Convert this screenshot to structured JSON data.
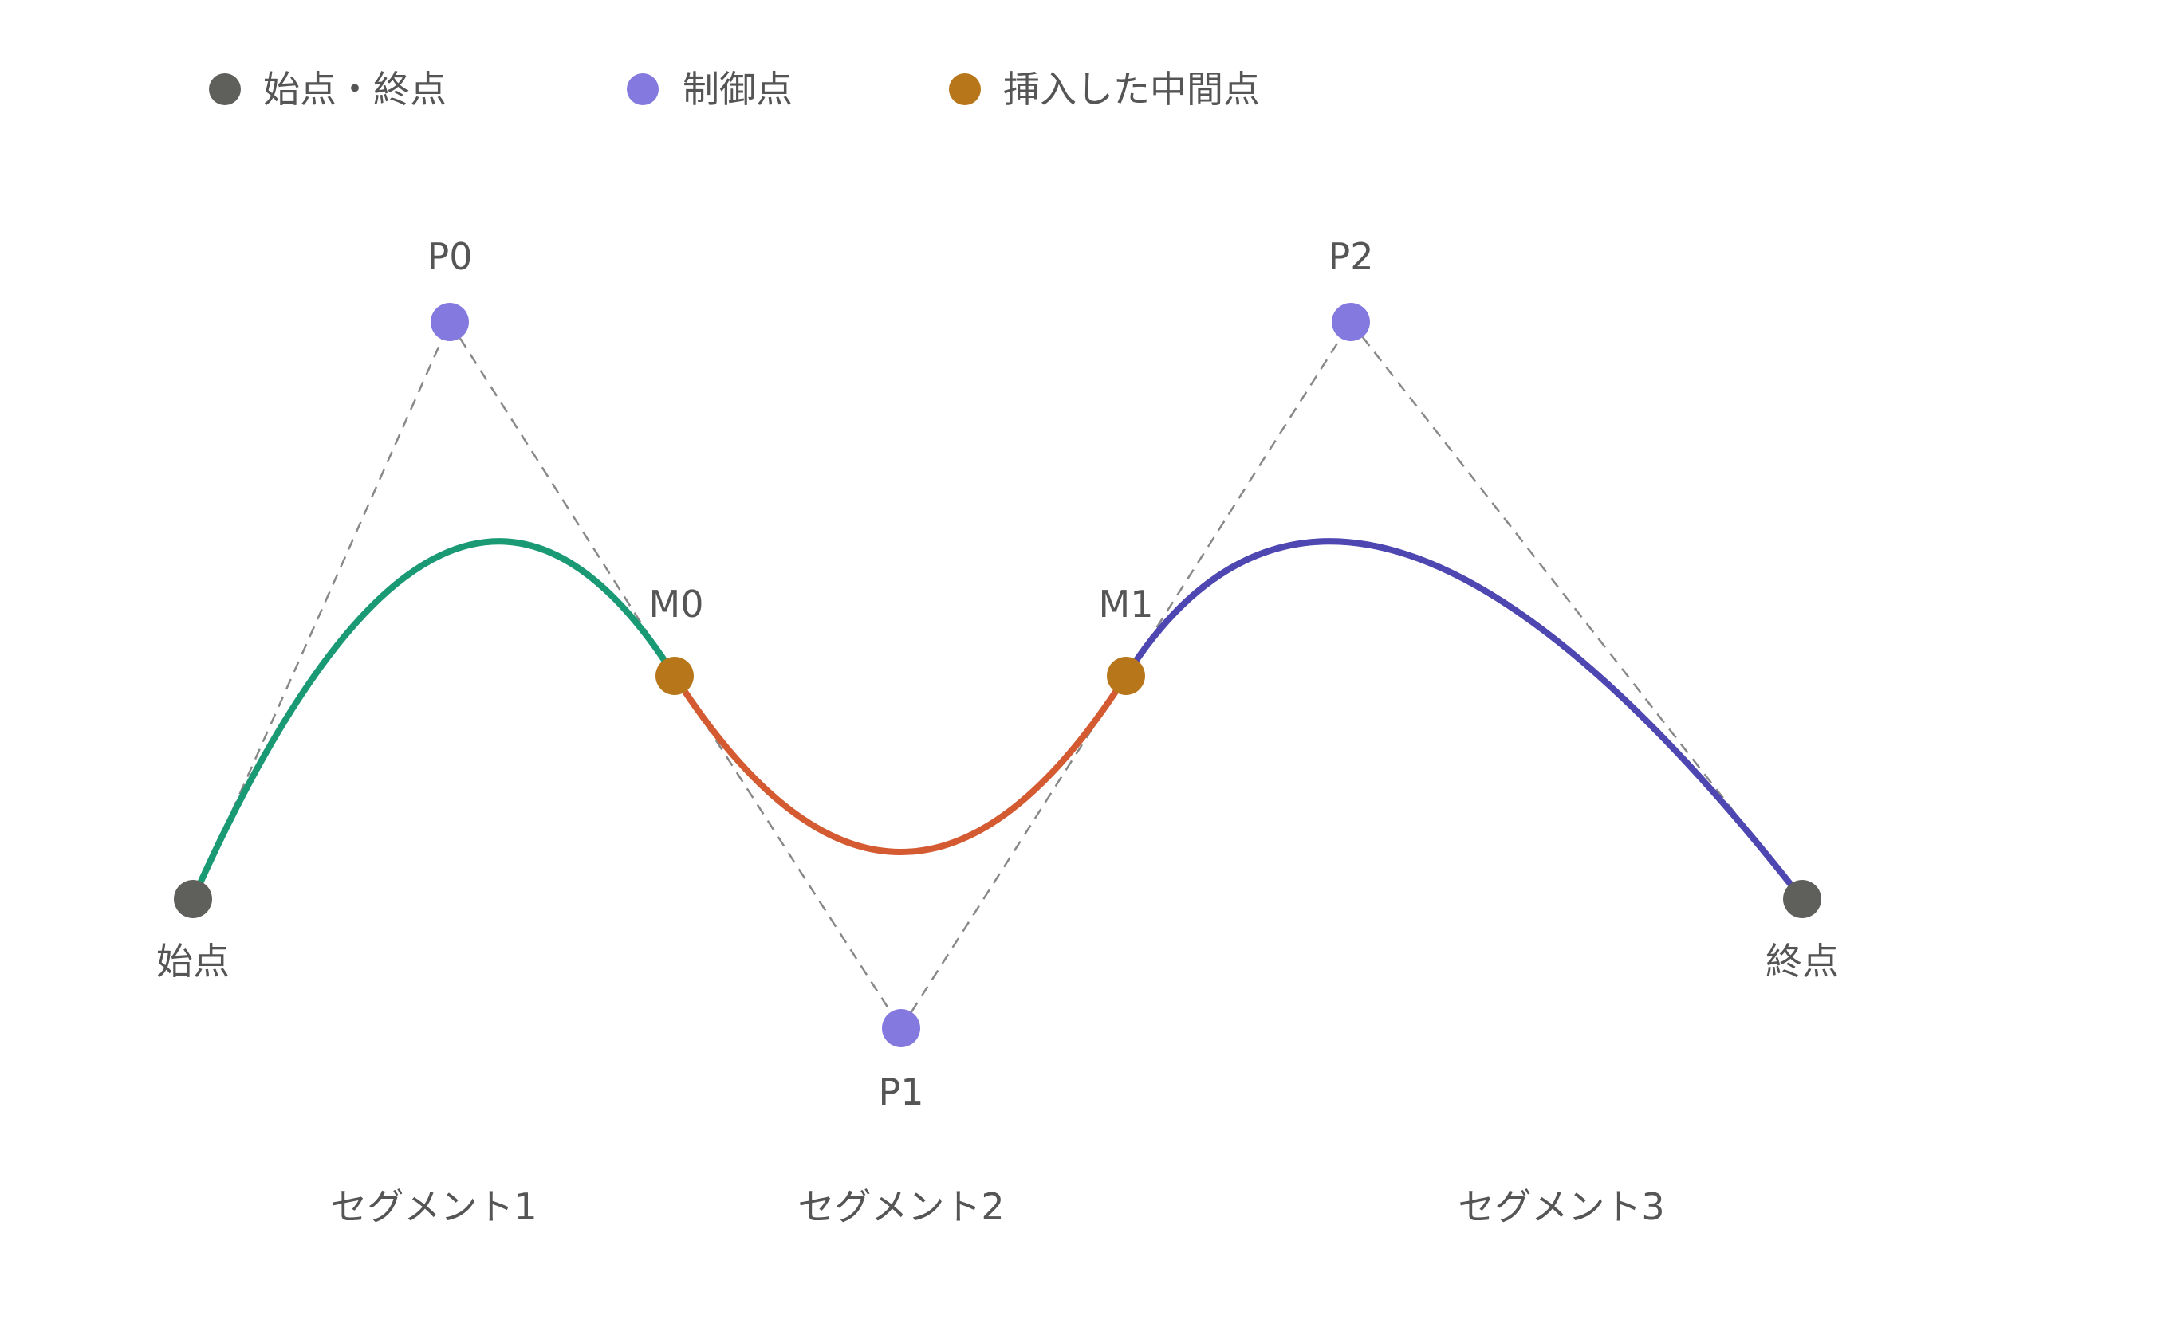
{
  "legend": {
    "endpoint": {
      "label": "始点・終点",
      "color": "#5f5f5c"
    },
    "control": {
      "label": "制御点",
      "color": "#8479df"
    },
    "midpoint": {
      "label": "挿入した中間点",
      "color": "#b8761a"
    }
  },
  "points": {
    "start": {
      "label": "始点"
    },
    "end": {
      "label": "終点"
    },
    "p0": {
      "label": "P0"
    },
    "p1": {
      "label": "P1"
    },
    "p2": {
      "label": "P2"
    },
    "m0": {
      "label": "M0"
    },
    "m1": {
      "label": "M1"
    }
  },
  "segments": [
    {
      "label": "セグメント1",
      "color": "#1a9a74"
    },
    {
      "label": "セグメント2",
      "color": "#d45a32"
    },
    {
      "label": "セグメント3",
      "color": "#4e47b2"
    }
  ],
  "guide_color": "#888888"
}
